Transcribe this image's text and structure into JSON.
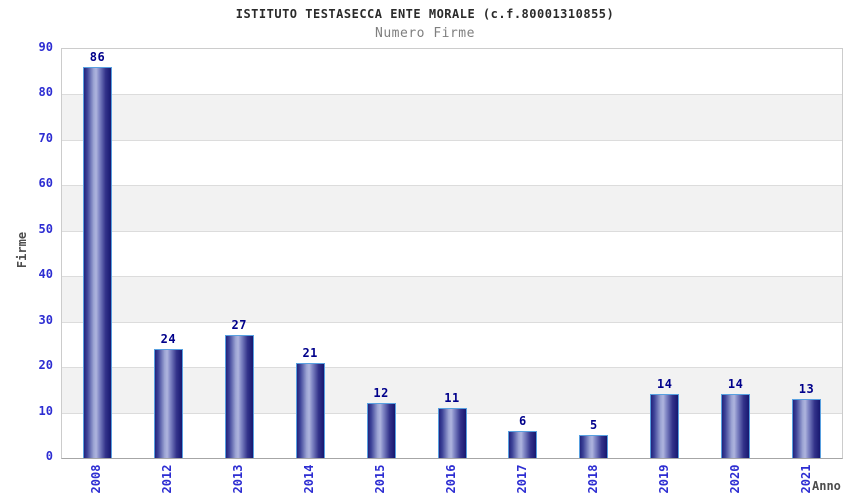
{
  "chart_data": {
    "type": "bar",
    "title": "ISTITUTO TESTASECCA ENTE MORALE (c.f.80001310855)",
    "subtitle": "Numero Firme",
    "xlabel": "Anno",
    "ylabel": "Firme",
    "categories": [
      "2008",
      "2012",
      "2013",
      "2014",
      "2015",
      "2016",
      "2017",
      "2018",
      "2019",
      "2020",
      "2021"
    ],
    "values": [
      86,
      24,
      27,
      21,
      12,
      11,
      6,
      5,
      14,
      14,
      13
    ],
    "ylim": [
      0,
      90
    ],
    "ytick_step": 10,
    "grid": "horizontal",
    "band_fill": "alternating",
    "legend_position": "none",
    "colors": {
      "bar_dark": "#1b1b74",
      "bar_highlight": "#aeb4de",
      "bar_border": "#58a0e0",
      "value_label": "#00008b",
      "tick_label": "#2d2dd2",
      "axis_label": "#4d4d4d",
      "title": "#2b2b2b",
      "subtitle": "#7f7f7f",
      "band": "#f2f2f2",
      "grid_line": "#dcdcdc",
      "plot_border": "#cccccc"
    }
  }
}
